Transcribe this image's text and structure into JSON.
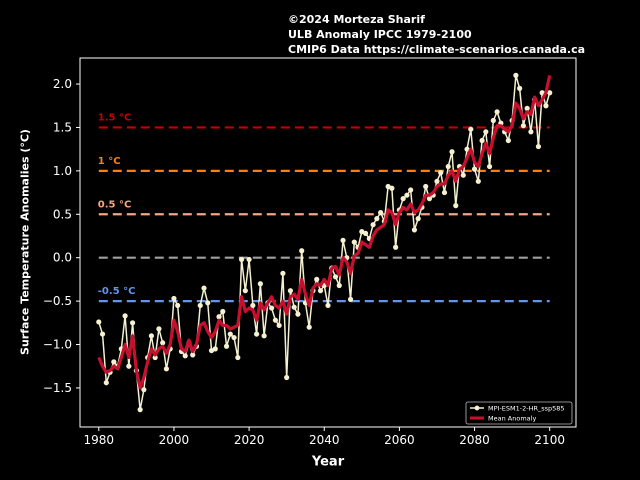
{
  "header": {
    "line1": "©2024 Morteza Sharif",
    "line2": "ULB Anomaly IPCC 1979-2100",
    "line3": "CMIP6 Data https://climate-scenarios.canada.ca"
  },
  "chart_data": {
    "type": "line",
    "xlabel": "Year",
    "ylabel": "Surface Temperature Anomalies (°C)",
    "xlim": [
      1975,
      2107
    ],
    "ylim": [
      -1.95,
      2.3
    ],
    "xticks": [
      1980,
      2000,
      2020,
      2040,
      2060,
      2080,
      2100
    ],
    "yticks": [
      -1.5,
      -1.0,
      -0.5,
      0.0,
      0.5,
      1.0,
      1.5,
      2.0
    ],
    "ytick_labels": [
      "−1.5",
      "−1.0",
      "−0.5",
      "0.0",
      "0.5",
      "1.0",
      "1.5",
      "2.0"
    ],
    "grid": false,
    "legend_position": "lower-right",
    "reference_lines": [
      {
        "value": 1.5,
        "label": "1.5 °C",
        "color": "#c40000"
      },
      {
        "value": 1.0,
        "label": "1 °C",
        "color": "#ff7f0e"
      },
      {
        "value": 0.5,
        "label": "0.5 °C",
        "color": "#f4a582"
      },
      {
        "value": 0.0,
        "label": "",
        "color": "#a0a0a0"
      },
      {
        "value": -0.5,
        "label": "-0.5 °C",
        "color": "#6495ed"
      }
    ],
    "series": [
      {
        "name": "MPI-ESM1-2-HR_ssp585",
        "color": "#f5f0d0",
        "x": [
          1980,
          1981,
          1982,
          1983,
          1984,
          1985,
          1986,
          1987,
          1988,
          1989,
          1990,
          1991,
          1992,
          1993,
          1994,
          1995,
          1996,
          1997,
          1998,
          1999,
          2000,
          2001,
          2002,
          2003,
          2004,
          2005,
          2006,
          2007,
          2008,
          2009,
          2010,
          2011,
          2012,
          2013,
          2014,
          2015,
          2016,
          2017,
          2018,
          2019,
          2020,
          2021,
          2022,
          2023,
          2024,
          2025,
          2026,
          2027,
          2028,
          2029,
          2030,
          2031,
          2032,
          2033,
          2034,
          2035,
          2036,
          2037,
          2038,
          2039,
          2040,
          2041,
          2042,
          2043,
          2044,
          2045,
          2046,
          2047,
          2048,
          2049,
          2050,
          2051,
          2052,
          2053,
          2054,
          2055,
          2056,
          2057,
          2058,
          2059,
          2060,
          2061,
          2062,
          2063,
          2064,
          2065,
          2066,
          2067,
          2068,
          2069,
          2070,
          2071,
          2072,
          2073,
          2074,
          2075,
          2076,
          2077,
          2078,
          2079,
          2080,
          2081,
          2082,
          2083,
          2084,
          2085,
          2086,
          2087,
          2088,
          2089,
          2090,
          2091,
          2092,
          2093,
          2094,
          2095,
          2096,
          2097,
          2098,
          2099,
          2100
        ],
        "values": [
          -0.74,
          -0.88,
          -1.44,
          -1.32,
          -1.2,
          -1.25,
          -1.05,
          -0.67,
          -1.25,
          -0.75,
          -1.3,
          -1.75,
          -1.52,
          -1.15,
          -0.9,
          -1.15,
          -0.82,
          -0.98,
          -1.28,
          -1.05,
          -0.47,
          -0.55,
          -1.08,
          -1.13,
          -0.98,
          -1.12,
          -1.02,
          -0.55,
          -0.35,
          -0.52,
          -1.07,
          -1.05,
          -0.68,
          -0.62,
          -1.02,
          -0.88,
          -0.92,
          -1.15,
          -0.02,
          -0.38,
          -0.02,
          -0.55,
          -0.88,
          -0.3,
          -0.9,
          -0.52,
          -0.58,
          -0.72,
          -0.78,
          -0.18,
          -1.38,
          -0.38,
          -0.57,
          -0.65,
          0.08,
          -0.52,
          -0.8,
          -0.38,
          -0.25,
          -0.38,
          -0.32,
          -0.55,
          -0.12,
          -0.22,
          -0.32,
          0.2,
          0.0,
          -0.48,
          0.18,
          0.12,
          0.3,
          0.28,
          0.22,
          0.38,
          0.45,
          0.52,
          0.42,
          0.82,
          0.8,
          0.12,
          0.55,
          0.68,
          0.72,
          0.78,
          0.32,
          0.45,
          0.58,
          0.82,
          0.68,
          0.72,
          0.88,
          0.98,
          0.75,
          1.05,
          1.22,
          0.6,
          1.05,
          0.95,
          1.25,
          1.48,
          1.02,
          0.88,
          1.35,
          1.45,
          1.05,
          1.58,
          1.68,
          1.55,
          1.45,
          1.35,
          1.58,
          2.1,
          1.95,
          1.52,
          1.72,
          1.45,
          1.82,
          1.28,
          1.9,
          1.75,
          1.9
        ]
      },
      {
        "name": "Mean Anomaly",
        "color": "#c8102e",
        "x": [
          1980,
          1981,
          1982,
          1983,
          1984,
          1985,
          1986,
          1987,
          1988,
          1989,
          1990,
          1991,
          1992,
          1993,
          1994,
          1995,
          1996,
          1997,
          1998,
          1999,
          2000,
          2001,
          2002,
          2003,
          2004,
          2005,
          2006,
          2007,
          2008,
          2009,
          2010,
          2011,
          2012,
          2013,
          2014,
          2015,
          2016,
          2017,
          2018,
          2019,
          2020,
          2021,
          2022,
          2023,
          2024,
          2025,
          2026,
          2027,
          2028,
          2029,
          2030,
          2031,
          2032,
          2033,
          2034,
          2035,
          2036,
          2037,
          2038,
          2039,
          2040,
          2041,
          2042,
          2043,
          2044,
          2045,
          2046,
          2047,
          2048,
          2049,
          2050,
          2051,
          2052,
          2053,
          2054,
          2055,
          2056,
          2057,
          2058,
          2059,
          2060,
          2061,
          2062,
          2063,
          2064,
          2065,
          2066,
          2067,
          2068,
          2069,
          2070,
          2071,
          2072,
          2073,
          2074,
          2075,
          2076,
          2077,
          2078,
          2079,
          2080,
          2081,
          2082,
          2083,
          2084,
          2085,
          2086,
          2087,
          2088,
          2089,
          2090,
          2091,
          2092,
          2093,
          2094,
          2095,
          2096,
          2097,
          2098,
          2099,
          2100
        ],
        "values": [
          -1.15,
          -1.25,
          -1.32,
          -1.3,
          -1.25,
          -1.28,
          -1.15,
          -1.0,
          -1.15,
          -0.9,
          -1.3,
          -1.5,
          -1.38,
          -1.2,
          -1.05,
          -1.12,
          -1.05,
          -1.02,
          -1.1,
          -1.0,
          -0.72,
          -0.85,
          -1.05,
          -1.08,
          -0.95,
          -1.08,
          -1.0,
          -0.78,
          -0.75,
          -0.85,
          -0.92,
          -0.85,
          -0.72,
          -0.78,
          -0.78,
          -0.82,
          -0.8,
          -0.78,
          -0.45,
          -0.62,
          -0.58,
          -0.6,
          -0.72,
          -0.52,
          -0.6,
          -0.52,
          -0.45,
          -0.55,
          -0.58,
          -0.5,
          -0.65,
          -0.45,
          -0.42,
          -0.48,
          -0.25,
          -0.42,
          -0.55,
          -0.35,
          -0.3,
          -0.32,
          -0.25,
          -0.32,
          -0.12,
          -0.1,
          -0.2,
          0.0,
          -0.05,
          -0.18,
          0.02,
          0.05,
          0.18,
          0.15,
          0.12,
          0.25,
          0.32,
          0.35,
          0.38,
          0.55,
          0.52,
          0.38,
          0.52,
          0.58,
          0.55,
          0.62,
          0.52,
          0.55,
          0.62,
          0.72,
          0.72,
          0.75,
          0.82,
          0.85,
          0.85,
          0.95,
          1.0,
          0.88,
          1.02,
          1.05,
          1.15,
          1.25,
          1.1,
          1.05,
          1.2,
          1.32,
          1.2,
          1.38,
          1.52,
          1.52,
          1.48,
          1.45,
          1.52,
          1.78,
          1.72,
          1.6,
          1.68,
          1.65,
          1.85,
          1.75,
          1.82,
          1.9,
          2.1
        ]
      }
    ]
  }
}
